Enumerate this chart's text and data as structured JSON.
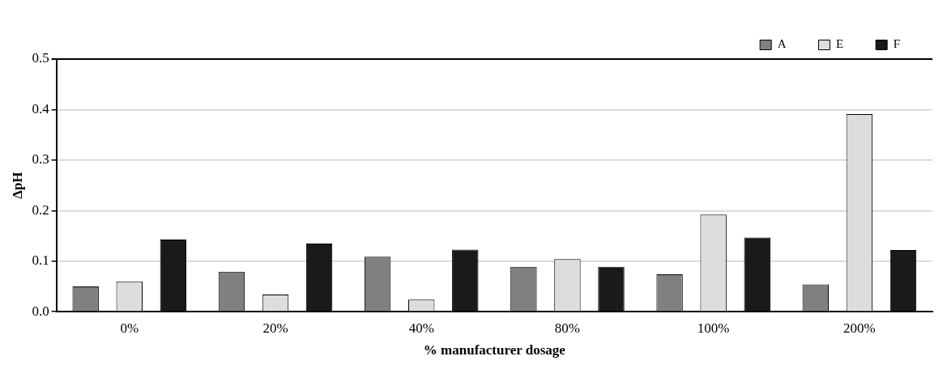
{
  "chart_data": {
    "type": "bar",
    "xlabel": "% manufacturer dosage",
    "ylabel": "ΔpH",
    "categories": [
      "0%",
      "20%",
      "40%",
      "80%",
      "100%",
      "200%"
    ],
    "series": [
      {
        "name": "A",
        "color": "#808080",
        "values": [
          0.05,
          0.079,
          0.109,
          0.089,
          0.074,
          0.054
        ]
      },
      {
        "name": "E",
        "color": "#dddddd",
        "values": [
          0.06,
          0.034,
          0.024,
          0.104,
          0.192,
          0.391
        ]
      },
      {
        "name": "F",
        "color": "#1a1a1a",
        "values": [
          0.143,
          0.135,
          0.123,
          0.089,
          0.147,
          0.122
        ]
      }
    ],
    "ylim": [
      0,
      0.5
    ],
    "yticks": [
      {
        "value": 0,
        "label": "0.0"
      },
      {
        "value": 0.1,
        "label": "0.1"
      },
      {
        "value": 0.2,
        "label": "0.2"
      },
      {
        "value": 0.3,
        "label": "0.3"
      },
      {
        "value": 0.4,
        "label": "0.4"
      },
      {
        "value": 0.5,
        "label": "0.5"
      }
    ],
    "grid": "y",
    "legend": "top right"
  }
}
